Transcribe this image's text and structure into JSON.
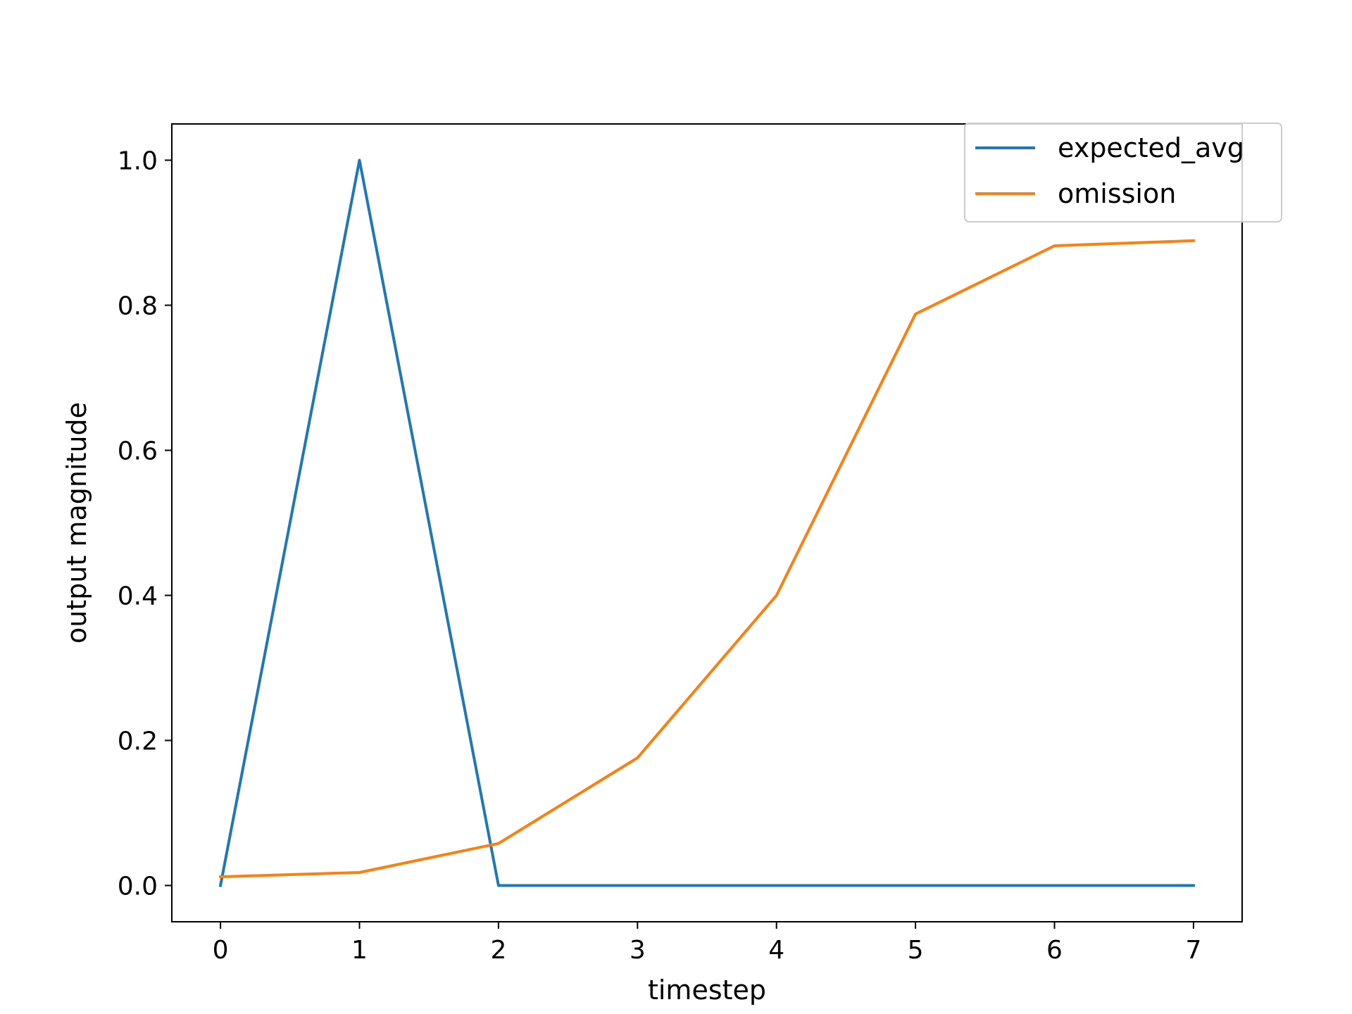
{
  "chart_data": {
    "type": "line",
    "title": "",
    "xlabel": "timestep",
    "ylabel": "output magnitude",
    "x": [
      0,
      1,
      2,
      3,
      4,
      5,
      6,
      7
    ],
    "xlim": [
      -0.35,
      7.35
    ],
    "ylim": [
      -0.05,
      1.05
    ],
    "xticks": [
      0,
      1,
      2,
      3,
      4,
      5,
      6,
      7
    ],
    "xtick_labels": [
      "0",
      "1",
      "2",
      "3",
      "4",
      "5",
      "6",
      "7"
    ],
    "yticks": [
      0.0,
      0.2,
      0.4,
      0.6,
      0.8,
      1.0
    ],
    "ytick_labels": [
      "0.0",
      "0.2",
      "0.4",
      "0.6",
      "0.8",
      "1.0"
    ],
    "grid": false,
    "legend": {
      "placement": "top-right"
    },
    "series": [
      {
        "name": "expected_avg",
        "color": "#1f77b4",
        "values": [
          0.0,
          1.0,
          0.0,
          0.0,
          0.0,
          0.0,
          0.0,
          0.0
        ]
      },
      {
        "name": "omission",
        "color": "#ff7f0e",
        "values": [
          0.012,
          0.018,
          0.058,
          0.176,
          0.4,
          0.788,
          0.882,
          0.889
        ]
      }
    ]
  }
}
